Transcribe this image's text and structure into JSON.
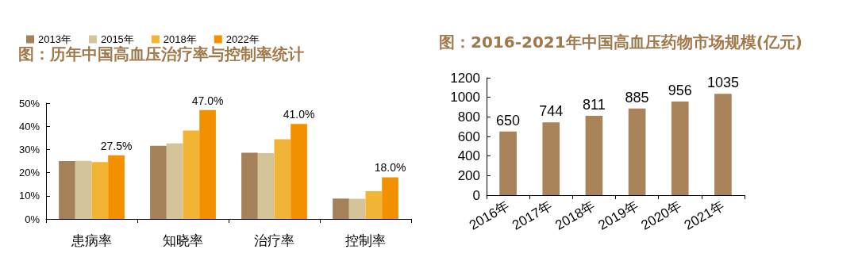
{
  "chart_data": [
    {
      "type": "bar",
      "title": "图：历年中国高血压治疗率与控制率统计",
      "categories": [
        "患病率",
        "知晓率",
        "治疗率",
        "控制率"
      ],
      "ylim": [
        0,
        50
      ],
      "yticks": [
        {
          "value": 0,
          "label": "0%"
        },
        {
          "value": 10,
          "label": "10%"
        },
        {
          "value": 20,
          "label": "20%"
        },
        {
          "value": 30,
          "label": "30%"
        },
        {
          "value": 40,
          "label": "40%"
        },
        {
          "value": 50,
          "label": "50%"
        }
      ],
      "legend": "top left",
      "grid": false,
      "series": [
        {
          "name": "2013年",
          "color": "#a5815a",
          "values": [
            25,
            31.6,
            28.6,
            8.8
          ]
        },
        {
          "name": "2015年",
          "color": "#d4c49a",
          "values": [
            25.1,
            32.6,
            28.4,
            8.7
          ]
        },
        {
          "name": "2018年",
          "color": "#f2b434",
          "values": [
            24.6,
            38.2,
            34.4,
            12
          ]
        },
        {
          "name": "2022年",
          "color": "#f39000",
          "values": [
            27.5,
            47,
            41,
            18
          ],
          "value_labels": [
            "27.5%",
            "47.0%",
            "41.0%",
            "18.0%"
          ]
        }
      ]
    },
    {
      "type": "bar",
      "title": "图：2016-2021年中国高血压药物市场规模(亿元)",
      "categories": [
        "2016年",
        "2017年",
        "2018年",
        "2019年",
        "2020年",
        "2021年"
      ],
      "ylim": [
        0,
        1200
      ],
      "yticks": [
        0,
        200,
        400,
        600,
        800,
        1000,
        1200
      ],
      "grid": false,
      "data_labels": true,
      "series": [
        {
          "color": "#a9835a",
          "values": [
            650,
            744,
            811,
            885,
            956,
            1035
          ]
        }
      ]
    }
  ]
}
